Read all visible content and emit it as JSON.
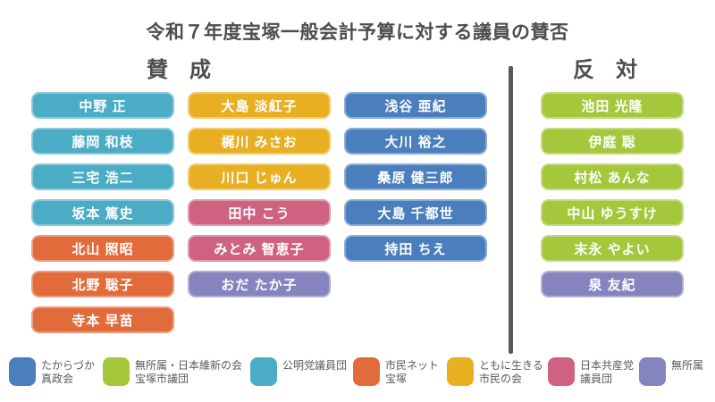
{
  "title": "令和７年度宝塚一般会計予算に対する議員の賛否",
  "party_colors": {
    "shinseikai": "#4A7EBD",
    "ishin": "#A4C73C",
    "komei": "#4BACC6",
    "shimin_net": "#E16B3B",
    "tomoni": "#E9AF23",
    "kyosan": "#CE6280",
    "mushozoku": "#8684BE"
  },
  "approve": {
    "label": "賛　成",
    "columns": [
      {
        "members": [
          {
            "name": "中野 正",
            "party": "komei"
          },
          {
            "name": "藤岡 和枝",
            "party": "komei"
          },
          {
            "name": "三宅 浩二",
            "party": "komei"
          },
          {
            "name": "坂本 篤史",
            "party": "komei"
          },
          {
            "name": "北山 照昭",
            "party": "shimin_net"
          },
          {
            "name": "北野 聡子",
            "party": "shimin_net"
          },
          {
            "name": "寺本 早苗",
            "party": "shimin_net"
          }
        ]
      },
      {
        "members": [
          {
            "name": "大島 淡紅子",
            "party": "tomoni"
          },
          {
            "name": "梶川 みさお",
            "party": "tomoni"
          },
          {
            "name": "川口 じゅん",
            "party": "tomoni"
          },
          {
            "name": "田中 こう",
            "party": "kyosan"
          },
          {
            "name": "みとみ 智恵子",
            "party": "kyosan"
          },
          {
            "name": "おだ たか子",
            "party": "mushozoku"
          }
        ]
      },
      {
        "members": [
          {
            "name": "浅谷 亜紀",
            "party": "shinseikai"
          },
          {
            "name": "大川 裕之",
            "party": "shinseikai"
          },
          {
            "name": "桑原 健三郎",
            "party": "shinseikai"
          },
          {
            "name": "大島 千都世",
            "party": "shinseikai"
          },
          {
            "name": "持田 ちえ",
            "party": "shinseikai"
          }
        ]
      }
    ]
  },
  "oppose": {
    "label": "反　対",
    "columns": [
      {
        "members": [
          {
            "name": "池田 光隆",
            "party": "ishin"
          },
          {
            "name": "伊庭 聡",
            "party": "ishin"
          },
          {
            "name": "村松 あんな",
            "party": "ishin"
          },
          {
            "name": "中山 ゆうすけ",
            "party": "ishin"
          },
          {
            "name": "末永 やよい",
            "party": "ishin"
          },
          {
            "name": "泉 友紀",
            "party": "mushozoku"
          }
        ]
      }
    ]
  },
  "legend": [
    {
      "party": "shinseikai",
      "lines": [
        "たからづか",
        "真政会"
      ]
    },
    {
      "party": "ishin",
      "lines": [
        "無所属・日本維新の会",
        "宝塚市議団"
      ]
    },
    {
      "party": "komei",
      "lines": [
        "公明党議員団"
      ]
    },
    {
      "party": "shimin_net",
      "lines": [
        "市民ネット",
        "宝塚"
      ]
    },
    {
      "party": "tomoni",
      "lines": [
        "ともに生きる",
        "市民の会"
      ]
    },
    {
      "party": "kyosan",
      "lines": [
        "日本共産党",
        "議員団"
      ]
    },
    {
      "party": "mushozoku",
      "lines": [
        "無所属"
      ]
    }
  ]
}
